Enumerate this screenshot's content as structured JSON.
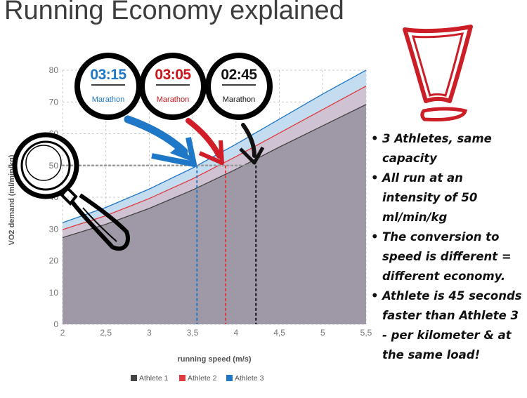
{
  "title": "Running Economy explained",
  "chart_data": {
    "type": "area",
    "xlabel": "running speed (m/s)",
    "ylabel": "VO2 demand (ml/min/kg)",
    "xlim": [
      2,
      5.5
    ],
    "ylim": [
      0,
      80
    ],
    "x_ticks": [
      "2",
      "2,5",
      "3",
      "3,5",
      "4",
      "4,5",
      "5",
      "5,5"
    ],
    "y_ticks": [
      "0",
      "10",
      "20",
      "30",
      "40",
      "50",
      "60",
      "70",
      "80"
    ],
    "grid": true,
    "legend_position": "bottom",
    "x": [
      2,
      2.5,
      3,
      3.5,
      4,
      4.5,
      5,
      5.5
    ],
    "series": [
      {
        "name": "Athlete 1",
        "color": "#444444",
        "values": [
          27.3,
          31.5,
          36.5,
          42.3,
          48.8,
          55.8,
          62.5,
          69.2
        ]
      },
      {
        "name": "Athlete 2",
        "color": "#e0393e",
        "values": [
          29.8,
          34.2,
          39.6,
          45.8,
          52.8,
          60.2,
          67.6,
          75.0
        ]
      },
      {
        "name": "Athlete 3",
        "color": "#1f77c8",
        "values": [
          32.0,
          36.8,
          42.6,
          49.2,
          56.7,
          64.6,
          72.5,
          80.0
        ]
      }
    ],
    "reference_line": {
      "y": 50
    },
    "markers": [
      {
        "athlete": "Athlete 3",
        "speed": 3.55,
        "time": "03:15",
        "label": "Marathon",
        "color": "#1f77c8"
      },
      {
        "athlete": "Athlete 2",
        "speed": 3.88,
        "time": "03:05",
        "label": "Marathon",
        "color": "#c8161d"
      },
      {
        "athlete": "Athlete 1",
        "speed": 4.23,
        "time": "02:45",
        "label": "Marathon",
        "color": "#111111"
      }
    ]
  },
  "bullets": [
    "3 Athletes, same capacity",
    "All run at an intensity of 50 ml/min/kg",
    "The conversion to speed is different = different economy.",
    "Athlete is 45 seconds faster than Athlete 3 - per kilometer & at the same load!"
  ]
}
